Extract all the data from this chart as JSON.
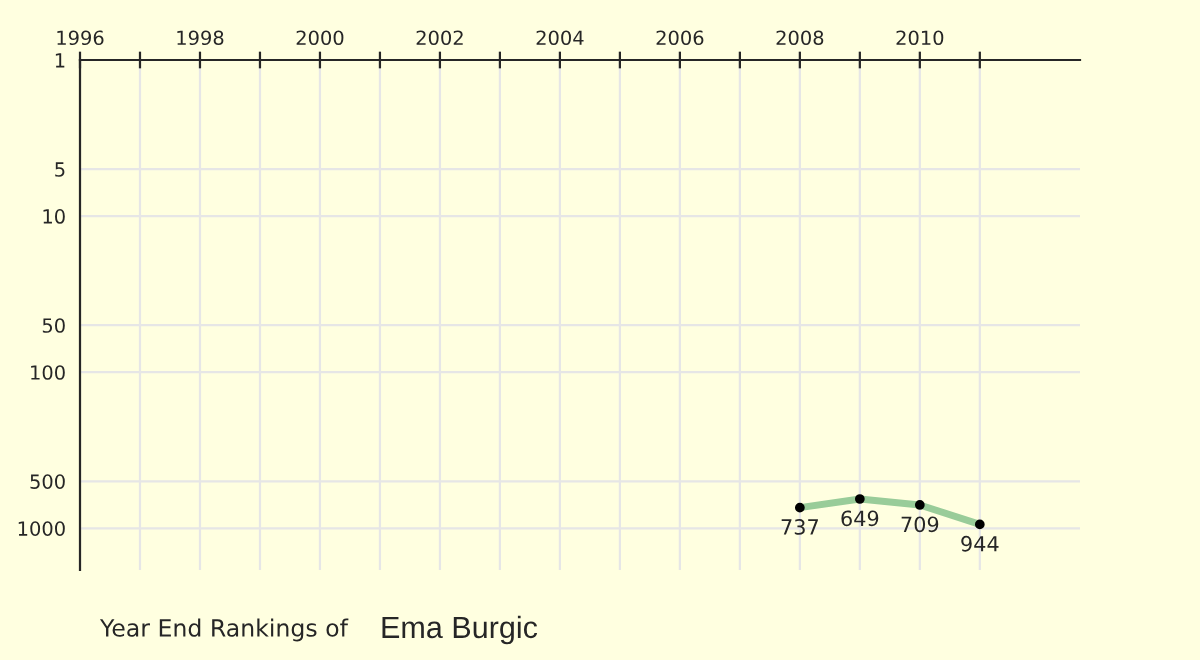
{
  "chart_data": {
    "type": "line",
    "title": "Year End Rankings of",
    "subtitle": "Ema Burgic",
    "x": [
      2008,
      2009,
      2010,
      2011
    ],
    "series": [
      {
        "color": "#99cc99",
        "values": [
          737,
          649,
          709,
          944
        ]
      }
    ],
    "data_labels": true,
    "marker": "circle",
    "log": true,
    "grid": true,
    "xlim": [
      1996,
      2012.67
    ],
    "xticks": [
      1996,
      {
        "value": 1997,
        "label": null
      },
      1998,
      {
        "value": 1999,
        "label": null
      },
      2000,
      {
        "value": 2001,
        "label": null
      },
      2002,
      {
        "value": 2003,
        "label": null
      },
      2004,
      {
        "value": 2005,
        "label": null
      },
      2006,
      {
        "value": 2007,
        "label": null
      },
      2008,
      {
        "value": 2009,
        "label": null
      },
      2010,
      {
        "value": 2011,
        "label": null
      }
    ],
    "ylim": [
      1850,
      1
    ],
    "yticks": [
      1,
      5,
      10,
      50,
      100,
      500,
      1000
    ]
  }
}
